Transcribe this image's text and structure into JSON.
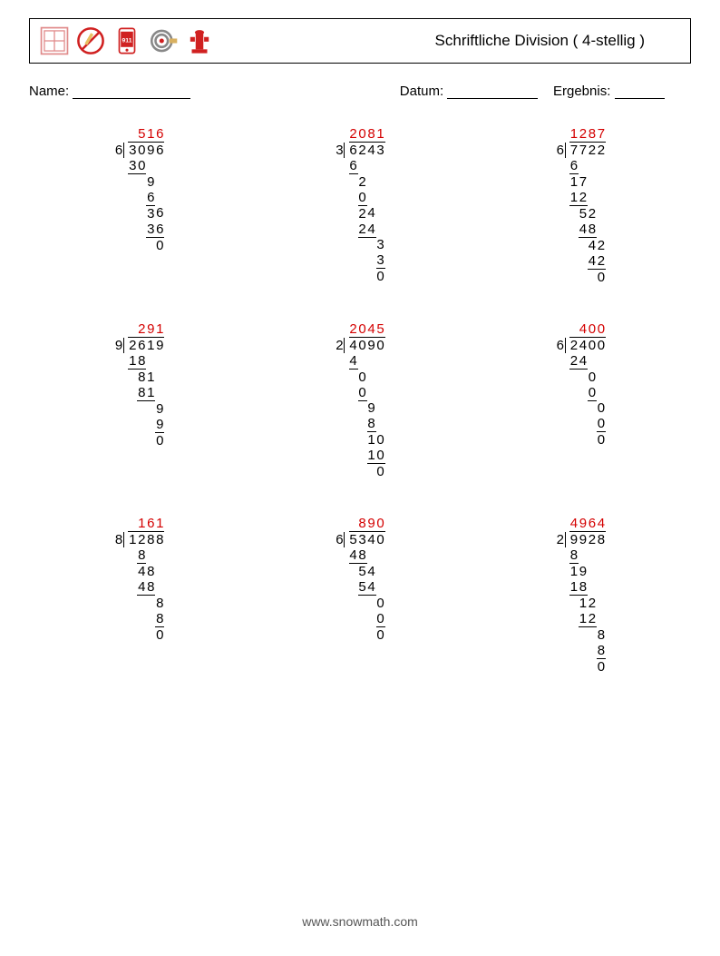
{
  "title": "Schriftliche Division ( 4-stellig )",
  "labels": {
    "name": "Name:",
    "date": "Datum:",
    "result": "Ergebnis:"
  },
  "footer": "www.snowmath.com",
  "colors": {
    "answer": "#d40000",
    "text": "#000000",
    "border": "#000000"
  },
  "font": {
    "body": "Segoe UI",
    "size_pt": 11
  },
  "problems": [
    {
      "divisor": "6",
      "dividend": "3096",
      "quotient": "516",
      "steps": [
        {
          "v": "30",
          "o": 0,
          "hl": 2
        },
        {
          "v": "9",
          "o": 2
        },
        {
          "v": "6",
          "o": 2,
          "hl": 1
        },
        {
          "v": "36",
          "o": 2
        },
        {
          "v": "36",
          "o": 2,
          "hl": 2
        },
        {
          "v": "0",
          "o": 3
        }
      ]
    },
    {
      "divisor": "3",
      "dividend": "6243",
      "quotient": "2081",
      "steps": [
        {
          "v": "6",
          "o": 0,
          "hl": 1
        },
        {
          "v": "2",
          "o": 1
        },
        {
          "v": "0",
          "o": 1,
          "hl": 1
        },
        {
          "v": "24",
          "o": 1
        },
        {
          "v": "24",
          "o": 1,
          "hl": 2
        },
        {
          "v": "3",
          "o": 3
        },
        {
          "v": "3",
          "o": 3,
          "hl": 1
        },
        {
          "v": "0",
          "o": 3
        }
      ]
    },
    {
      "divisor": "6",
      "dividend": "7722",
      "quotient": "1287",
      "steps": [
        {
          "v": "6",
          "o": 0,
          "hl": 1
        },
        {
          "v": "17",
          "o": 0
        },
        {
          "v": "12",
          "o": 0,
          "hl": 2
        },
        {
          "v": "52",
          "o": 1
        },
        {
          "v": "48",
          "o": 1,
          "hl": 2
        },
        {
          "v": "42",
          "o": 2
        },
        {
          "v": "42",
          "o": 2,
          "hl": 2
        },
        {
          "v": "0",
          "o": 3
        }
      ]
    },
    {
      "divisor": "9",
      "dividend": "2619",
      "quotient": "291",
      "steps": [
        {
          "v": "18",
          "o": 0,
          "hl": 2
        },
        {
          "v": "81",
          "o": 1
        },
        {
          "v": "81",
          "o": 1,
          "hl": 2
        },
        {
          "v": "9",
          "o": 3
        },
        {
          "v": "9",
          "o": 3,
          "hl": 1
        },
        {
          "v": "0",
          "o": 3
        }
      ],
      "qpad": 1
    },
    {
      "divisor": "2",
      "dividend": "4090",
      "quotient": "2045",
      "steps": [
        {
          "v": "4",
          "o": 0,
          "hl": 1
        },
        {
          "v": "0",
          "o": 1
        },
        {
          "v": "0",
          "o": 1,
          "hl": 1
        },
        {
          "v": "9",
          "o": 2
        },
        {
          "v": "8",
          "o": 2,
          "hl": 1
        },
        {
          "v": "10",
          "o": 2
        },
        {
          "v": "10",
          "o": 2,
          "hl": 2
        },
        {
          "v": "0",
          "o": 3
        }
      ]
    },
    {
      "divisor": "6",
      "dividend": "2400",
      "quotient": "400",
      "steps": [
        {
          "v": "24",
          "o": 0,
          "hl": 2
        },
        {
          "v": "0",
          "o": 2
        },
        {
          "v": "0",
          "o": 2,
          "hl": 1
        },
        {
          "v": "0",
          "o": 3
        },
        {
          "v": "0",
          "o": 3,
          "hl": 1
        },
        {
          "v": "0",
          "o": 3
        }
      ],
      "qpad": 1
    },
    {
      "divisor": "8",
      "dividend": "1288",
      "quotient": "161",
      "steps": [
        {
          "v": "8",
          "o": 1,
          "hl": 1
        },
        {
          "v": "48",
          "o": 1
        },
        {
          "v": "48",
          "o": 1,
          "hl": 2
        },
        {
          "v": "8",
          "o": 3
        },
        {
          "v": "8",
          "o": 3,
          "hl": 1
        },
        {
          "v": "0",
          "o": 3
        }
      ],
      "qpad": 1
    },
    {
      "divisor": "6",
      "dividend": "5340",
      "quotient": "890",
      "steps": [
        {
          "v": "48",
          "o": 0,
          "hl": 2
        },
        {
          "v": "54",
          "o": 1
        },
        {
          "v": "54",
          "o": 1,
          "hl": 2
        },
        {
          "v": "0",
          "o": 3
        },
        {
          "v": "0",
          "o": 3,
          "hl": 1
        },
        {
          "v": "0",
          "o": 3
        }
      ],
      "qpad": 1
    },
    {
      "divisor": "2",
      "dividend": "9928",
      "quotient": "4964",
      "steps": [
        {
          "v": "8",
          "o": 0,
          "hl": 1
        },
        {
          "v": "19",
          "o": 0
        },
        {
          "v": "18",
          "o": 0,
          "hl": 2
        },
        {
          "v": "12",
          "o": 1
        },
        {
          "v": "12",
          "o": 1,
          "hl": 2
        },
        {
          "v": "8",
          "o": 3
        },
        {
          "v": "8",
          "o": 3,
          "hl": 1
        },
        {
          "v": "0",
          "o": 3
        }
      ]
    }
  ]
}
